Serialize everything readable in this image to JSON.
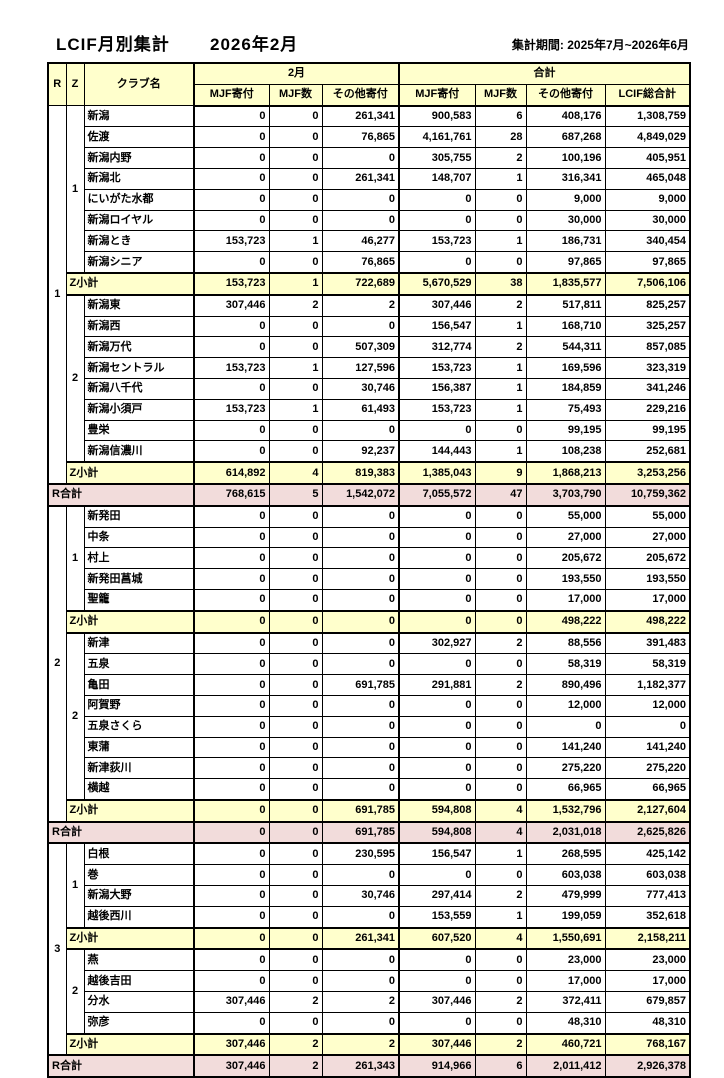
{
  "title": "LCIF月別集計",
  "month_title": "2026年2月",
  "period_label": "集計期間: 2025年7月~2026年6月",
  "table": {
    "corner": {
      "r": "R",
      "z": "Z",
      "club": "クラブ名"
    },
    "groups": [
      {
        "label": "2月",
        "cols": [
          "MJF寄付",
          "MJF数",
          "その他寄付"
        ]
      },
      {
        "label": "合計",
        "cols": [
          "MJF寄付",
          "MJF数",
          "その他寄付",
          "LCIF総合計"
        ]
      }
    ],
    "zsub_label": "Z小計",
    "rtotal_label": "R合計",
    "colors": {
      "header_bg": "#FFFFCC",
      "zone_subtotal_bg": "#FFFFCC",
      "region_total_bg": "#F2DCDB"
    },
    "regions": [
      {
        "r": "1",
        "zones": [
          {
            "z": "1",
            "clubs": [
              {
                "name": "新潟",
                "values": [
                  "0",
                  "0",
                  "261,341",
                  "900,583",
                  "6",
                  "408,176",
                  "1,308,759"
                ]
              },
              {
                "name": "佐渡",
                "values": [
                  "0",
                  "0",
                  "76,865",
                  "4,161,761",
                  "28",
                  "687,268",
                  "4,849,029"
                ]
              },
              {
                "name": "新潟内野",
                "values": [
                  "0",
                  "0",
                  "0",
                  "305,755",
                  "2",
                  "100,196",
                  "405,951"
                ]
              },
              {
                "name": "新潟北",
                "values": [
                  "0",
                  "0",
                  "261,341",
                  "148,707",
                  "1",
                  "316,341",
                  "465,048"
                ]
              },
              {
                "name": "にいがた水都",
                "values": [
                  "0",
                  "0",
                  "0",
                  "0",
                  "0",
                  "9,000",
                  "9,000"
                ]
              },
              {
                "name": "新潟ロイヤル",
                "values": [
                  "0",
                  "0",
                  "0",
                  "0",
                  "0",
                  "30,000",
                  "30,000"
                ]
              },
              {
                "name": "新潟とき",
                "values": [
                  "153,723",
                  "1",
                  "46,277",
                  "153,723",
                  "1",
                  "186,731",
                  "340,454"
                ]
              },
              {
                "name": "新潟シニア",
                "values": [
                  "0",
                  "0",
                  "76,865",
                  "0",
                  "0",
                  "97,865",
                  "97,865"
                ]
              }
            ],
            "subtotal": [
              "153,723",
              "1",
              "722,689",
              "5,670,529",
              "38",
              "1,835,577",
              "7,506,106"
            ]
          },
          {
            "z": "2",
            "clubs": [
              {
                "name": "新潟東",
                "values": [
                  "307,446",
                  "2",
                  "2",
                  "307,446",
                  "2",
                  "517,811",
                  "825,257"
                ]
              },
              {
                "name": "新潟西",
                "values": [
                  "0",
                  "0",
                  "0",
                  "156,547",
                  "1",
                  "168,710",
                  "325,257"
                ]
              },
              {
                "name": "新潟万代",
                "values": [
                  "0",
                  "0",
                  "507,309",
                  "312,774",
                  "2",
                  "544,311",
                  "857,085"
                ]
              },
              {
                "name": "新潟セントラル",
                "values": [
                  "153,723",
                  "1",
                  "127,596",
                  "153,723",
                  "1",
                  "169,596",
                  "323,319"
                ]
              },
              {
                "name": "新潟八千代",
                "values": [
                  "0",
                  "0",
                  "30,746",
                  "156,387",
                  "1",
                  "184,859",
                  "341,246"
                ]
              },
              {
                "name": "新潟小須戸",
                "values": [
                  "153,723",
                  "1",
                  "61,493",
                  "153,723",
                  "1",
                  "75,493",
                  "229,216"
                ]
              },
              {
                "name": "豊栄",
                "values": [
                  "0",
                  "0",
                  "0",
                  "0",
                  "0",
                  "99,195",
                  "99,195"
                ]
              },
              {
                "name": "新潟信濃川",
                "values": [
                  "0",
                  "0",
                  "92,237",
                  "144,443",
                  "1",
                  "108,238",
                  "252,681"
                ]
              }
            ],
            "subtotal": [
              "614,892",
              "4",
              "819,383",
              "1,385,043",
              "9",
              "1,868,213",
              "3,253,256"
            ]
          }
        ],
        "total": [
          "768,615",
          "5",
          "1,542,072",
          "7,055,572",
          "47",
          "3,703,790",
          "10,759,362"
        ]
      },
      {
        "r": "2",
        "zones": [
          {
            "z": "1",
            "clubs": [
              {
                "name": "新発田",
                "values": [
                  "0",
                  "0",
                  "0",
                  "0",
                  "0",
                  "55,000",
                  "55,000"
                ]
              },
              {
                "name": "中条",
                "values": [
                  "0",
                  "0",
                  "0",
                  "0",
                  "0",
                  "27,000",
                  "27,000"
                ]
              },
              {
                "name": "村上",
                "values": [
                  "0",
                  "0",
                  "0",
                  "0",
                  "0",
                  "205,672",
                  "205,672"
                ]
              },
              {
                "name": "新発田菖城",
                "values": [
                  "0",
                  "0",
                  "0",
                  "0",
                  "0",
                  "193,550",
                  "193,550"
                ]
              },
              {
                "name": "聖籠",
                "values": [
                  "0",
                  "0",
                  "0",
                  "0",
                  "0",
                  "17,000",
                  "17,000"
                ]
              }
            ],
            "subtotal": [
              "0",
              "0",
              "0",
              "0",
              "0",
              "498,222",
              "498,222"
            ]
          },
          {
            "z": "2",
            "clubs": [
              {
                "name": "新津",
                "values": [
                  "0",
                  "0",
                  "0",
                  "302,927",
                  "2",
                  "88,556",
                  "391,483"
                ]
              },
              {
                "name": "五泉",
                "values": [
                  "0",
                  "0",
                  "0",
                  "0",
                  "0",
                  "58,319",
                  "58,319"
                ]
              },
              {
                "name": "亀田",
                "values": [
                  "0",
                  "0",
                  "691,785",
                  "291,881",
                  "2",
                  "890,496",
                  "1,182,377"
                ]
              },
              {
                "name": "阿賀野",
                "values": [
                  "0",
                  "0",
                  "0",
                  "0",
                  "0",
                  "12,000",
                  "12,000"
                ]
              },
              {
                "name": "五泉さくら",
                "values": [
                  "0",
                  "0",
                  "0",
                  "0",
                  "0",
                  "0",
                  "0"
                ]
              },
              {
                "name": "東蒲",
                "values": [
                  "0",
                  "0",
                  "0",
                  "0",
                  "0",
                  "141,240",
                  "141,240"
                ]
              },
              {
                "name": "新津荻川",
                "values": [
                  "0",
                  "0",
                  "0",
                  "0",
                  "0",
                  "275,220",
                  "275,220"
                ]
              },
              {
                "name": "横越",
                "values": [
                  "0",
                  "0",
                  "0",
                  "0",
                  "0",
                  "66,965",
                  "66,965"
                ]
              }
            ],
            "subtotal": [
              "0",
              "0",
              "691,785",
              "594,808",
              "4",
              "1,532,796",
              "2,127,604"
            ]
          }
        ],
        "total": [
          "0",
          "0",
          "691,785",
          "594,808",
          "4",
          "2,031,018",
          "2,625,826"
        ]
      },
      {
        "r": "3",
        "zones": [
          {
            "z": "1",
            "clubs": [
              {
                "name": "白根",
                "values": [
                  "0",
                  "0",
                  "230,595",
                  "156,547",
                  "1",
                  "268,595",
                  "425,142"
                ]
              },
              {
                "name": "巻",
                "values": [
                  "0",
                  "0",
                  "0",
                  "0",
                  "0",
                  "603,038",
                  "603,038"
                ]
              },
              {
                "name": "新潟大野",
                "values": [
                  "0",
                  "0",
                  "30,746",
                  "297,414",
                  "2",
                  "479,999",
                  "777,413"
                ]
              },
              {
                "name": "越後西川",
                "values": [
                  "0",
                  "0",
                  "0",
                  "153,559",
                  "1",
                  "199,059",
                  "352,618"
                ]
              }
            ],
            "subtotal": [
              "0",
              "0",
              "261,341",
              "607,520",
              "4",
              "1,550,691",
              "2,158,211"
            ]
          },
          {
            "z": "2",
            "clubs": [
              {
                "name": "燕",
                "values": [
                  "0",
                  "0",
                  "0",
                  "0",
                  "0",
                  "23,000",
                  "23,000"
                ]
              },
              {
                "name": "越後吉田",
                "values": [
                  "0",
                  "0",
                  "0",
                  "0",
                  "0",
                  "17,000",
                  "17,000"
                ]
              },
              {
                "name": "分水",
                "values": [
                  "307,446",
                  "2",
                  "2",
                  "307,446",
                  "2",
                  "372,411",
                  "679,857"
                ]
              },
              {
                "name": "弥彦",
                "values": [
                  "0",
                  "0",
                  "0",
                  "0",
                  "0",
                  "48,310",
                  "48,310"
                ]
              }
            ],
            "subtotal": [
              "307,446",
              "2",
              "2",
              "307,446",
              "2",
              "460,721",
              "768,167"
            ]
          }
        ],
        "total": [
          "307,446",
          "2",
          "261,343",
          "914,966",
          "6",
          "2,011,412",
          "2,926,378"
        ]
      }
    ]
  }
}
